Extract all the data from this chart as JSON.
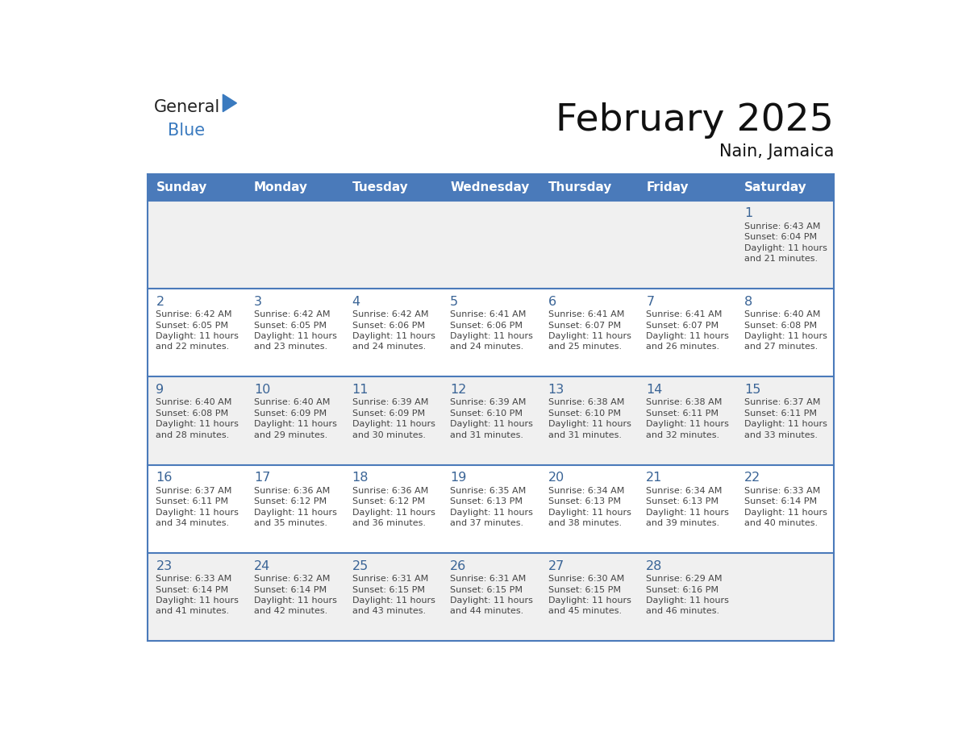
{
  "title": "February 2025",
  "subtitle": "Nain, Jamaica",
  "header_color": "#4a7aba",
  "header_text_color": "#ffffff",
  "days_of_week": [
    "Sunday",
    "Monday",
    "Tuesday",
    "Wednesday",
    "Thursday",
    "Friday",
    "Saturday"
  ],
  "background_color": "#ffffff",
  "cell_bg_row0": "#f0f0f0",
  "cell_bg_row1": "#ffffff",
  "cell_bg_row2": "#f0f0f0",
  "cell_bg_row3": "#ffffff",
  "cell_bg_row4": "#f0f0f0",
  "day_number_color": "#3a6496",
  "info_text_color": "#444444",
  "border_color": "#4a7aba",
  "logo_general_color": "#222222",
  "logo_blue_color": "#3a7abf",
  "logo_triangle_color": "#3a7abf",
  "calendar_data": [
    [
      null,
      null,
      null,
      null,
      null,
      null,
      {
        "day": 1,
        "sunrise": "6:43 AM",
        "sunset": "6:04 PM",
        "daylight": "11 hours and 21 minutes."
      }
    ],
    [
      {
        "day": 2,
        "sunrise": "6:42 AM",
        "sunset": "6:05 PM",
        "daylight": "11 hours and 22 minutes."
      },
      {
        "day": 3,
        "sunrise": "6:42 AM",
        "sunset": "6:05 PM",
        "daylight": "11 hours and 23 minutes."
      },
      {
        "day": 4,
        "sunrise": "6:42 AM",
        "sunset": "6:06 PM",
        "daylight": "11 hours and 24 minutes."
      },
      {
        "day": 5,
        "sunrise": "6:41 AM",
        "sunset": "6:06 PM",
        "daylight": "11 hours and 24 minutes."
      },
      {
        "day": 6,
        "sunrise": "6:41 AM",
        "sunset": "6:07 PM",
        "daylight": "11 hours and 25 minutes."
      },
      {
        "day": 7,
        "sunrise": "6:41 AM",
        "sunset": "6:07 PM",
        "daylight": "11 hours and 26 minutes."
      },
      {
        "day": 8,
        "sunrise": "6:40 AM",
        "sunset": "6:08 PM",
        "daylight": "11 hours and 27 minutes."
      }
    ],
    [
      {
        "day": 9,
        "sunrise": "6:40 AM",
        "sunset": "6:08 PM",
        "daylight": "11 hours and 28 minutes."
      },
      {
        "day": 10,
        "sunrise": "6:40 AM",
        "sunset": "6:09 PM",
        "daylight": "11 hours and 29 minutes."
      },
      {
        "day": 11,
        "sunrise": "6:39 AM",
        "sunset": "6:09 PM",
        "daylight": "11 hours and 30 minutes."
      },
      {
        "day": 12,
        "sunrise": "6:39 AM",
        "sunset": "6:10 PM",
        "daylight": "11 hours and 31 minutes."
      },
      {
        "day": 13,
        "sunrise": "6:38 AM",
        "sunset": "6:10 PM",
        "daylight": "11 hours and 31 minutes."
      },
      {
        "day": 14,
        "sunrise": "6:38 AM",
        "sunset": "6:11 PM",
        "daylight": "11 hours and 32 minutes."
      },
      {
        "day": 15,
        "sunrise": "6:37 AM",
        "sunset": "6:11 PM",
        "daylight": "11 hours and 33 minutes."
      }
    ],
    [
      {
        "day": 16,
        "sunrise": "6:37 AM",
        "sunset": "6:11 PM",
        "daylight": "11 hours and 34 minutes."
      },
      {
        "day": 17,
        "sunrise": "6:36 AM",
        "sunset": "6:12 PM",
        "daylight": "11 hours and 35 minutes."
      },
      {
        "day": 18,
        "sunrise": "6:36 AM",
        "sunset": "6:12 PM",
        "daylight": "11 hours and 36 minutes."
      },
      {
        "day": 19,
        "sunrise": "6:35 AM",
        "sunset": "6:13 PM",
        "daylight": "11 hours and 37 minutes."
      },
      {
        "day": 20,
        "sunrise": "6:34 AM",
        "sunset": "6:13 PM",
        "daylight": "11 hours and 38 minutes."
      },
      {
        "day": 21,
        "sunrise": "6:34 AM",
        "sunset": "6:13 PM",
        "daylight": "11 hours and 39 minutes."
      },
      {
        "day": 22,
        "sunrise": "6:33 AM",
        "sunset": "6:14 PM",
        "daylight": "11 hours and 40 minutes."
      }
    ],
    [
      {
        "day": 23,
        "sunrise": "6:33 AM",
        "sunset": "6:14 PM",
        "daylight": "11 hours and 41 minutes."
      },
      {
        "day": 24,
        "sunrise": "6:32 AM",
        "sunset": "6:14 PM",
        "daylight": "11 hours and 42 minutes."
      },
      {
        "day": 25,
        "sunrise": "6:31 AM",
        "sunset": "6:15 PM",
        "daylight": "11 hours and 43 minutes."
      },
      {
        "day": 26,
        "sunrise": "6:31 AM",
        "sunset": "6:15 PM",
        "daylight": "11 hours and 44 minutes."
      },
      {
        "day": 27,
        "sunrise": "6:30 AM",
        "sunset": "6:15 PM",
        "daylight": "11 hours and 45 minutes."
      },
      {
        "day": 28,
        "sunrise": "6:29 AM",
        "sunset": "6:16 PM",
        "daylight": "11 hours and 46 minutes."
      },
      null
    ]
  ]
}
